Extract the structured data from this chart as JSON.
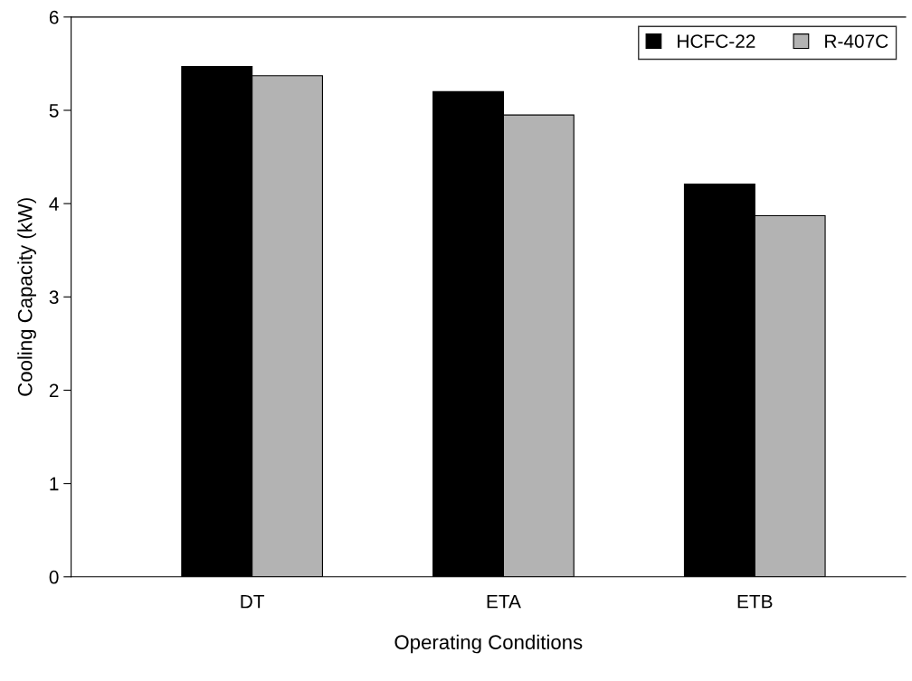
{
  "chart_data": {
    "type": "bar",
    "xlabel": "Operating Conditions",
    "ylabel": "Cooling Capacity (kW)",
    "categories": [
      "DT",
      "ETA",
      "ETB"
    ],
    "series": [
      {
        "name": "HCFC-22",
        "color": "#000000",
        "values": [
          5.47,
          5.2,
          4.21
        ]
      },
      {
        "name": "R-407C",
        "color": "#b3b3b3",
        "values": [
          5.37,
          4.95,
          3.87
        ]
      }
    ],
    "ylim": [
      0,
      6
    ],
    "yticks": [
      0,
      1,
      2,
      3,
      4,
      5,
      6
    ],
    "grid": false,
    "legend": "top right"
  }
}
